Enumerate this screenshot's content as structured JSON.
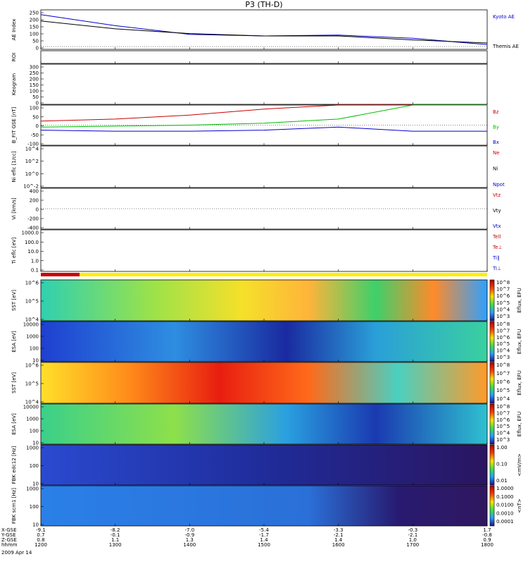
{
  "title": "P3 (TH-D)",
  "footer": {
    "rows": [
      {
        "label": "X-GSE",
        "values": [
          "-9.1",
          "-8.2",
          "-7.0",
          "-5.4",
          "-3.3",
          "-0.3",
          "1.7"
        ]
      },
      {
        "label": "Y-GSE",
        "values": [
          "0.7",
          "-0.1",
          "-0.9",
          "-1.7",
          "-2.1",
          "-2.1",
          "-0.8"
        ]
      },
      {
        "label": "Z-GSE",
        "values": [
          "0.8",
          "1.1",
          "1.3",
          "1.4",
          "1.4",
          "1.0",
          "0.9"
        ]
      },
      {
        "label": "hhmm",
        "values": [
          "1200",
          "1300",
          "1400",
          "1500",
          "1600",
          "1700",
          "1800"
        ]
      }
    ],
    "date": "2009 Apr 14"
  },
  "colors": {
    "red": "#cc0000",
    "green": "#00bb00",
    "blue": "#0000cc",
    "black": "#000000",
    "cyan": "#00bbbb",
    "orange": "#ff9900"
  },
  "chart_data": [
    {
      "type": "line",
      "panel": "ae",
      "ylabel": "AE Index",
      "yticks": [
        "250",
        "200",
        "150",
        "100",
        "50",
        "0"
      ],
      "ylim": [
        0,
        250
      ],
      "x": [
        "1200",
        "1300",
        "1400",
        "1500",
        "1600",
        "1700",
        "1800"
      ],
      "series": [
        {
          "name": "Kyoto AE",
          "color": "#0000cc",
          "values": [
            220,
            150,
            95,
            85,
            90,
            70,
            30
          ]
        },
        {
          "name": "Themis AE",
          "color": "#000000",
          "values": [
            180,
            130,
            100,
            85,
            85,
            60,
            40
          ]
        }
      ]
    },
    {
      "type": "line",
      "panel": "roi",
      "ylabel": "ROI"
    },
    {
      "type": "heatmap",
      "panel": "keogram",
      "ylabel": "Keogram",
      "yticks": [
        "300",
        "250",
        "200",
        "150",
        "100",
        "50",
        "0"
      ],
      "ylim": [
        0,
        300
      ]
    },
    {
      "type": "line",
      "panel": "bfit",
      "ylabel": "B_FIT GSE [nT]",
      "yticks": [
        "100",
        "50",
        "0",
        "-50",
        "-100"
      ],
      "ylim": [
        -100,
        100
      ],
      "x": [
        "1200",
        "1300",
        "1400",
        "1500",
        "1600",
        "1700",
        "1800"
      ],
      "series": [
        {
          "name": "Bz",
          "color": "#cc0000",
          "values": [
            20,
            30,
            50,
            80,
            100,
            100,
            100
          ]
        },
        {
          "name": "By",
          "color": "#00bb00",
          "values": [
            -10,
            -5,
            0,
            10,
            30,
            100,
            100
          ]
        },
        {
          "name": "Bx",
          "color": "#0000cc",
          "values": [
            -25,
            -30,
            -30,
            -25,
            -10,
            -30,
            -30
          ]
        }
      ]
    },
    {
      "type": "line",
      "panel": "ni",
      "ylabel": "Ni eflc [1/cc]",
      "yticks": [
        "10^4",
        "10^2",
        "10^0",
        "10^-2"
      ],
      "series_labels": [
        "Ne",
        "Ni",
        "Npot"
      ]
    },
    {
      "type": "line",
      "panel": "vi",
      "ylabel": "Vi [km/s]",
      "yticks": [
        "400",
        "200",
        "0",
        "-200",
        "-400"
      ],
      "ylim": [
        -400,
        400
      ],
      "series_labels": [
        "Vtz",
        "Vty",
        "Vtx"
      ]
    },
    {
      "type": "line",
      "panel": "ti",
      "ylabel": "Ti eflc [eV]",
      "yticks": [
        "1000.0",
        "100.0",
        "10.0",
        "1.0",
        "0.1"
      ],
      "series_labels": [
        "Tell",
        "Te⊥",
        "Ti∥",
        "Ti⊥"
      ]
    },
    {
      "type": "heatmap",
      "panel": "sst1",
      "ylabel": "SST [eV]",
      "yticks": [
        "10^6",
        "10^5",
        "10^4"
      ],
      "colorbar_label": "Eflux, EFU",
      "colorbar_ticks": [
        "10^8",
        "10^7",
        "10^6",
        "10^5",
        "10^4",
        "10^3"
      ]
    },
    {
      "type": "heatmap",
      "panel": "esa1",
      "ylabel": "ESA [eV]",
      "yticks": [
        "10000",
        "1000",
        "100",
        "10"
      ],
      "colorbar_label": "Eflux, EFU",
      "colorbar_ticks": [
        "10^8",
        "10^7",
        "10^6",
        "10^5",
        "10^4",
        "10^3"
      ]
    },
    {
      "type": "heatmap",
      "panel": "sst2",
      "ylabel": "SST [eV]",
      "yticks": [
        "10^6",
        "10^5",
        "10^4"
      ],
      "colorbar_label": "Eflux, EFU",
      "colorbar_ticks": [
        "10^8",
        "10^7",
        "10^6",
        "10^5",
        "10^4"
      ]
    },
    {
      "type": "heatmap",
      "panel": "esa2",
      "ylabel": "ESA [eV]",
      "yticks": [
        "10000",
        "1000",
        "100",
        "10"
      ],
      "colorbar_label": "Eflux, EFU",
      "colorbar_ticks": [
        "10^8",
        "10^7",
        "10^6",
        "10^5",
        "10^4",
        "10^3"
      ]
    },
    {
      "type": "heatmap",
      "panel": "fbk1",
      "ylabel": "FBK edc12 [Hz]",
      "yticks": [
        "1000",
        "100",
        "10"
      ],
      "colorbar_label": "<mV/m>",
      "colorbar_ticks": [
        "1.00",
        "0.10",
        "0.01"
      ]
    },
    {
      "type": "heatmap",
      "panel": "fbk2",
      "ylabel": "FBK scm1 [Hz]",
      "yticks": [
        "1000",
        "100",
        "10"
      ],
      "colorbar_label": "<nT>",
      "colorbar_ticks": [
        "1.0000",
        "0.1000",
        "0.0100",
        "0.0010",
        "0.0001"
      ]
    }
  ]
}
